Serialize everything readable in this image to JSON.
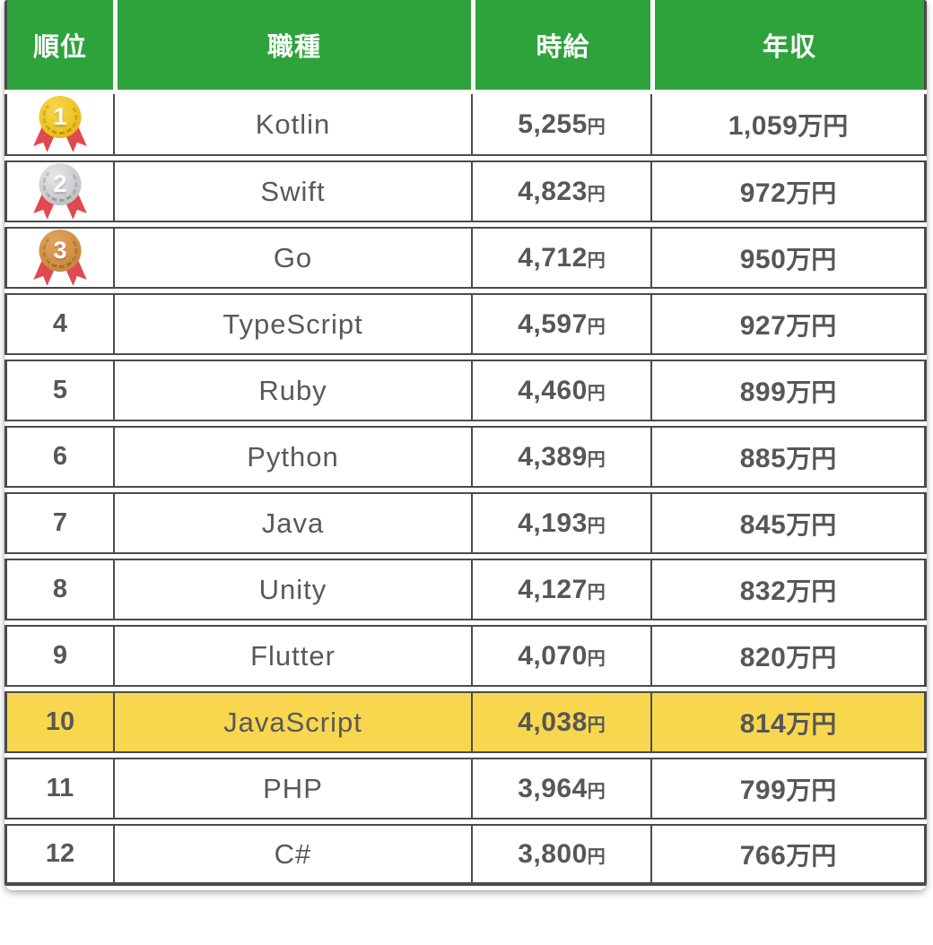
{
  "table": {
    "headers": {
      "rank": "順位",
      "job": "職種",
      "wage": "時給",
      "salary": "年収"
    },
    "rows": [
      {
        "rank": "1",
        "medal": "gold",
        "name": "Kotlin",
        "wage": "5,255",
        "wage_unit": "円",
        "salary": "1,059",
        "salary_unit": "万円",
        "highlight": false
      },
      {
        "rank": "2",
        "medal": "silver",
        "name": "Swift",
        "wage": "4,823",
        "wage_unit": "円",
        "salary": "972",
        "salary_unit": "万円",
        "highlight": false
      },
      {
        "rank": "3",
        "medal": "bronze",
        "name": "Go",
        "wage": "4,712",
        "wage_unit": "円",
        "salary": "950",
        "salary_unit": "万円",
        "highlight": false
      },
      {
        "rank": "4",
        "medal": null,
        "name": "TypeScript",
        "wage": "4,597",
        "wage_unit": "円",
        "salary": "927",
        "salary_unit": "万円",
        "highlight": false
      },
      {
        "rank": "5",
        "medal": null,
        "name": "Ruby",
        "wage": "4,460",
        "wage_unit": "円",
        "salary": "899",
        "salary_unit": "万円",
        "highlight": false
      },
      {
        "rank": "6",
        "medal": null,
        "name": "Python",
        "wage": "4,389",
        "wage_unit": "円",
        "salary": "885",
        "salary_unit": "万円",
        "highlight": false
      },
      {
        "rank": "7",
        "medal": null,
        "name": "Java",
        "wage": "4,193",
        "wage_unit": "円",
        "salary": "845",
        "salary_unit": "万円",
        "highlight": false
      },
      {
        "rank": "8",
        "medal": null,
        "name": "Unity",
        "wage": "4,127",
        "wage_unit": "円",
        "salary": "832",
        "salary_unit": "万円",
        "highlight": false
      },
      {
        "rank": "9",
        "medal": null,
        "name": "Flutter",
        "wage": "4,070",
        "wage_unit": "円",
        "salary": "820",
        "salary_unit": "万円",
        "highlight": false
      },
      {
        "rank": "10",
        "medal": null,
        "name": "JavaScript",
        "wage": "4,038",
        "wage_unit": "円",
        "salary": "814",
        "salary_unit": "万円",
        "highlight": true
      },
      {
        "rank": "11",
        "medal": null,
        "name": "PHP",
        "wage": "3,964",
        "wage_unit": "円",
        "salary": "799",
        "salary_unit": "万円",
        "highlight": false
      },
      {
        "rank": "12",
        "medal": null,
        "name": "C#",
        "wage": "3,800",
        "wage_unit": "円",
        "salary": "766",
        "salary_unit": "万円",
        "highlight": false
      }
    ]
  },
  "icons": {
    "gold_medal": "gold-medal-icon",
    "silver_medal": "silver-medal-icon",
    "bronze_medal": "bronze-medal-icon"
  },
  "colors": {
    "header_green": "#2EA33C",
    "highlight_yellow": "#F8D74E",
    "border_gray": "#4B4B4B",
    "text_gray": "#575757",
    "medal_gold": "#EFC21F",
    "medal_silver": "#C8CACD",
    "medal_bronze": "#CF8C41",
    "ribbon_red": "#E04A50"
  }
}
